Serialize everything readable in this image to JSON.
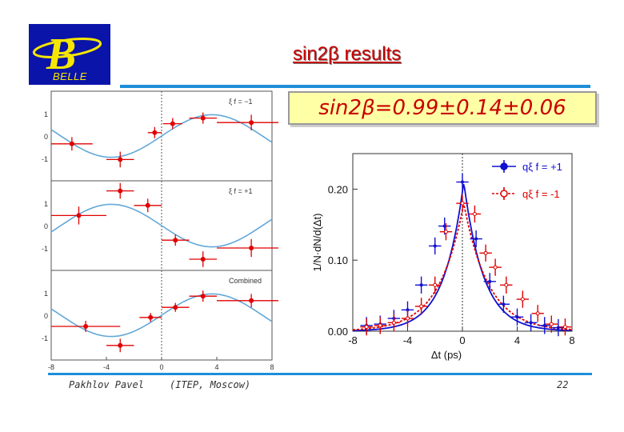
{
  "slide": {
    "title": "sin2β results",
    "result": "sin2β=0.99±0.14±0.06",
    "footer_author": "Pakhlov Pavel",
    "footer_affiliation": "(ITEP, Moscow)",
    "page_number": "22",
    "logo_letter": "B",
    "logo_text": "BELLE",
    "colors": {
      "title": "#c80000",
      "rule": "#1d8fd8",
      "result_bg": "#ffffa6",
      "logo_bg": "#0b14a8",
      "logo_fg": "#f5e600"
    }
  },
  "chart_data": [
    {
      "type": "scatter",
      "panels": [
        {
          "label": "ξ f = −1",
          "points": [
            {
              "x": -6.5,
              "y": -0.35,
              "xerr": 1.5,
              "yerr": 0.3
            },
            {
              "x": -3.0,
              "y": -1.05,
              "xerr": 1.0,
              "yerr": 0.35
            },
            {
              "x": -0.5,
              "y": 0.15,
              "xerr": 0.5,
              "yerr": 0.25
            },
            {
              "x": 0.8,
              "y": 0.55,
              "xerr": 0.7,
              "yerr": 0.25
            },
            {
              "x": 3.0,
              "y": 0.8,
              "xerr": 1.0,
              "yerr": 0.25
            },
            {
              "x": 6.5,
              "y": 0.6,
              "xerr": 2.5,
              "yerr": 0.35
            }
          ]
        },
        {
          "label": "ξ f = +1",
          "points": [
            {
              "x": -6.0,
              "y": 0.45,
              "xerr": 2.0,
              "yerr": 0.4
            },
            {
              "x": -3.0,
              "y": 1.55,
              "xerr": 1.0,
              "yerr": 0.35
            },
            {
              "x": -1.0,
              "y": 0.9,
              "xerr": 1.0,
              "yerr": 0.3
            },
            {
              "x": 1.0,
              "y": -0.65,
              "xerr": 1.0,
              "yerr": 0.25
            },
            {
              "x": 3.0,
              "y": -1.5,
              "xerr": 1.0,
              "yerr": 0.35
            },
            {
              "x": 6.5,
              "y": -1.0,
              "xerr": 2.5,
              "yerr": 0.4
            }
          ]
        },
        {
          "label": "Combined",
          "points": [
            {
              "x": -5.5,
              "y": -0.5,
              "xerr": 2.5,
              "yerr": 0.25
            },
            {
              "x": -3.0,
              "y": -1.35,
              "xerr": 1.0,
              "yerr": 0.3
            },
            {
              "x": -0.8,
              "y": -0.1,
              "xerr": 0.8,
              "yerr": 0.2
            },
            {
              "x": 1.0,
              "y": 0.35,
              "xerr": 1.0,
              "yerr": 0.2
            },
            {
              "x": 3.0,
              "y": 0.85,
              "xerr": 1.0,
              "yerr": 0.25
            },
            {
              "x": 6.5,
              "y": 0.65,
              "xerr": 2.5,
              "yerr": 0.3
            }
          ]
        }
      ],
      "y_ticks": [
        "1",
        "0",
        "-1"
      ],
      "x_ticks": [
        "-8",
        "-4",
        "0",
        "4",
        "8"
      ],
      "xlim": [
        -8,
        8
      ],
      "ylim": [
        -2,
        2
      ],
      "curve_color": "#63a8d8",
      "point_color": "#e00000"
    },
    {
      "type": "line",
      "xlabel": "Δt (ps)",
      "ylabel": "1/N·dN/d(Δt)",
      "xlim": [
        -8,
        8
      ],
      "ylim": [
        0,
        0.25
      ],
      "x_ticks": [
        "-8",
        "-4",
        "0",
        "4",
        "8"
      ],
      "y_ticks": [
        "0.00",
        "0.10",
        "0.20"
      ],
      "legend": [
        "qξ f = +1",
        "qξ f = -1"
      ],
      "legend_position": "top-right",
      "series": [
        {
          "name": "qξ f = +1",
          "color": "#1010d0",
          "points": [
            [
              -7,
              0.008
            ],
            [
              -6,
              0.01
            ],
            [
              -5,
              0.018
            ],
            [
              -4,
              0.03
            ],
            [
              -3,
              0.065
            ],
            [
              -2,
              0.12
            ],
            [
              -1.3,
              0.148
            ],
            [
              0,
              0.21
            ],
            [
              1,
              0.13
            ],
            [
              2,
              0.07
            ],
            [
              3,
              0.038
            ],
            [
              4,
              0.02
            ],
            [
              5,
              0.012
            ],
            [
              6,
              0.008
            ],
            [
              7,
              0.005
            ]
          ]
        },
        {
          "name": "qξ f = -1",
          "color": "#e00000",
          "points": [
            [
              -7,
              0.006
            ],
            [
              -6,
              0.008
            ],
            [
              -5,
              0.012
            ],
            [
              -4,
              0.018
            ],
            [
              -3,
              0.035
            ],
            [
              -2,
              0.065
            ],
            [
              -1.2,
              0.14
            ],
            [
              0,
              0.18
            ],
            [
              0.9,
              0.165
            ],
            [
              1.7,
              0.11
            ],
            [
              2.4,
              0.09
            ],
            [
              3.2,
              0.065
            ],
            [
              4.4,
              0.045
            ],
            [
              5.5,
              0.025
            ],
            [
              6.5,
              0.01
            ],
            [
              7.5,
              0.006
            ]
          ]
        }
      ]
    }
  ]
}
